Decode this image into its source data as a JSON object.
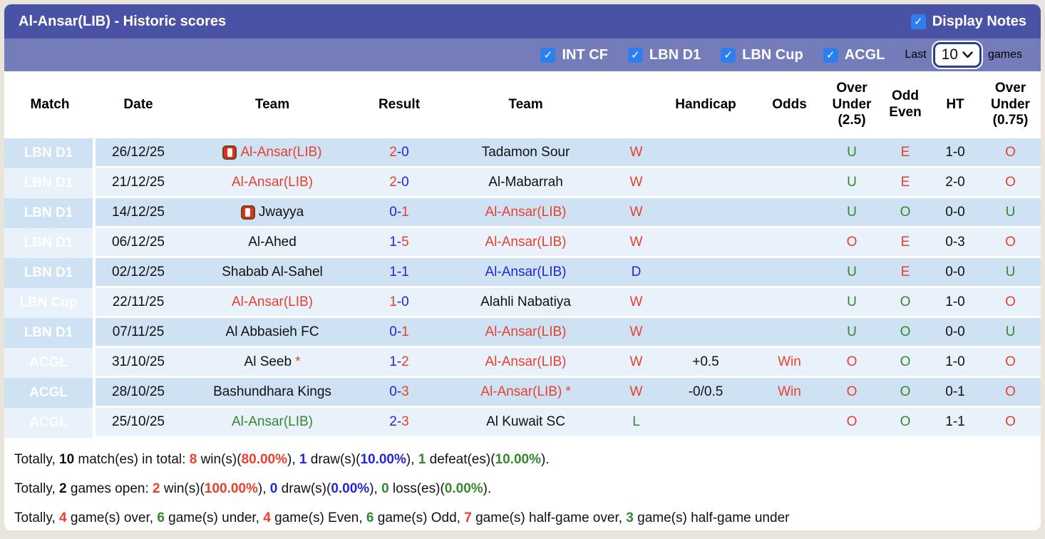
{
  "header": {
    "title": "Al-Ansar(LIB) - Historic scores",
    "display_notes_label": "Display Notes",
    "display_notes_checked": true
  },
  "filters": {
    "leagues": [
      {
        "label": "INT CF",
        "checked": true
      },
      {
        "label": "LBN D1",
        "checked": true
      },
      {
        "label": "LBN Cup",
        "checked": true
      },
      {
        "label": "ACGL",
        "checked": true
      }
    ],
    "last_label": "Last",
    "last_value": "10",
    "games_label": "games"
  },
  "table": {
    "columns": [
      {
        "key": "match",
        "label": "Match"
      },
      {
        "key": "date",
        "label": "Date"
      },
      {
        "key": "team1",
        "label": "Team"
      },
      {
        "key": "result",
        "label": "Result"
      },
      {
        "key": "team2",
        "label": "Team"
      },
      {
        "key": "wdl",
        "label": ""
      },
      {
        "key": "handicap",
        "label": "Handicap"
      },
      {
        "key": "odds",
        "label": "Odds"
      },
      {
        "key": "ou25",
        "label": "Over Under (2.5)"
      },
      {
        "key": "oddeven",
        "label": "Odd Even"
      },
      {
        "key": "ht",
        "label": "HT"
      },
      {
        "key": "ou075",
        "label": "Over Under (0.75)"
      }
    ],
    "rows": [
      {
        "league": "LBN D1",
        "league_color": "green",
        "date": "26/12/25",
        "team1": {
          "name": "Al-Ansar(LIB)",
          "color": "red",
          "logo": true,
          "suffix": ""
        },
        "result": {
          "left": "2",
          "right": "0",
          "left_color": "red",
          "right_color": "blue"
        },
        "team2": {
          "name": "Tadamon Sour",
          "color": "black",
          "suffix": ""
        },
        "wdl": {
          "text": "W",
          "color": "red"
        },
        "handicap": "",
        "odds": "",
        "ou25": {
          "text": "U",
          "color": "green"
        },
        "oddeven": {
          "text": "E",
          "color": "red"
        },
        "ht": "1-0",
        "ou075": {
          "text": "O",
          "color": "red"
        }
      },
      {
        "league": "LBN D1",
        "league_color": "green",
        "date": "21/12/25",
        "team1": {
          "name": "Al-Ansar(LIB)",
          "color": "red",
          "logo": false,
          "suffix": ""
        },
        "result": {
          "left": "2",
          "right": "0",
          "left_color": "red",
          "right_color": "blue"
        },
        "team2": {
          "name": "Al-Mabarrah",
          "color": "black",
          "suffix": ""
        },
        "wdl": {
          "text": "W",
          "color": "red"
        },
        "handicap": "",
        "odds": "",
        "ou25": {
          "text": "U",
          "color": "green"
        },
        "oddeven": {
          "text": "E",
          "color": "red"
        },
        "ht": "2-0",
        "ou075": {
          "text": "O",
          "color": "red"
        }
      },
      {
        "league": "LBN D1",
        "league_color": "green",
        "date": "14/12/25",
        "team1": {
          "name": "Jwayya",
          "color": "black",
          "logo": true,
          "suffix": ""
        },
        "result": {
          "left": "0",
          "right": "1",
          "left_color": "blue",
          "right_color": "red"
        },
        "team2": {
          "name": "Al-Ansar(LIB)",
          "color": "red",
          "suffix": ""
        },
        "wdl": {
          "text": "W",
          "color": "red"
        },
        "handicap": "",
        "odds": "",
        "ou25": {
          "text": "U",
          "color": "green"
        },
        "oddeven": {
          "text": "O",
          "color": "green"
        },
        "ht": "0-0",
        "ou075": {
          "text": "U",
          "color": "green"
        }
      },
      {
        "league": "LBN D1",
        "league_color": "green",
        "date": "06/12/25",
        "team1": {
          "name": "Al-Ahed",
          "color": "black",
          "logo": false,
          "suffix": ""
        },
        "result": {
          "left": "1",
          "right": "5",
          "left_color": "blue",
          "right_color": "red"
        },
        "team2": {
          "name": "Al-Ansar(LIB)",
          "color": "red",
          "suffix": ""
        },
        "wdl": {
          "text": "W",
          "color": "red"
        },
        "handicap": "",
        "odds": "",
        "ou25": {
          "text": "O",
          "color": "red"
        },
        "oddeven": {
          "text": "E",
          "color": "red"
        },
        "ht": "0-3",
        "ou075": {
          "text": "O",
          "color": "red"
        }
      },
      {
        "league": "LBN D1",
        "league_color": "green",
        "date": "02/12/25",
        "team1": {
          "name": "Shabab Al-Sahel",
          "color": "black",
          "logo": false,
          "suffix": ""
        },
        "result": {
          "left": "1",
          "right": "1",
          "left_color": "blue",
          "right_color": "blue"
        },
        "team2": {
          "name": "Al-Ansar(LIB)",
          "color": "blue",
          "suffix": ""
        },
        "wdl": {
          "text": "D",
          "color": "blue"
        },
        "handicap": "",
        "odds": "",
        "ou25": {
          "text": "U",
          "color": "green"
        },
        "oddeven": {
          "text": "E",
          "color": "red"
        },
        "ht": "0-0",
        "ou075": {
          "text": "U",
          "color": "green"
        }
      },
      {
        "league": "LBN Cup",
        "league_color": "cup",
        "date": "22/11/25",
        "team1": {
          "name": "Al-Ansar(LIB)",
          "color": "red",
          "logo": false,
          "suffix": ""
        },
        "result": {
          "left": "1",
          "right": "0",
          "left_color": "red",
          "right_color": "blue"
        },
        "team2": {
          "name": "Alahli Nabatiya",
          "color": "black",
          "suffix": ""
        },
        "wdl": {
          "text": "W",
          "color": "red"
        },
        "handicap": "",
        "odds": "",
        "ou25": {
          "text": "U",
          "color": "green"
        },
        "oddeven": {
          "text": "O",
          "color": "green"
        },
        "ht": "1-0",
        "ou075": {
          "text": "O",
          "color": "red"
        }
      },
      {
        "league": "LBN D1",
        "league_color": "green",
        "date": "07/11/25",
        "team1": {
          "name": "Al Abbasieh FC",
          "color": "black",
          "logo": false,
          "suffix": ""
        },
        "result": {
          "left": "0",
          "right": "1",
          "left_color": "blue",
          "right_color": "red"
        },
        "team2": {
          "name": "Al-Ansar(LIB)",
          "color": "red",
          "suffix": ""
        },
        "wdl": {
          "text": "W",
          "color": "red"
        },
        "handicap": "",
        "odds": "",
        "ou25": {
          "text": "U",
          "color": "green"
        },
        "oddeven": {
          "text": "O",
          "color": "green"
        },
        "ht": "0-0",
        "ou075": {
          "text": "U",
          "color": "green"
        }
      },
      {
        "league": "ACGL",
        "league_color": "orange",
        "date": "31/10/25",
        "team1": {
          "name": "Al Seeb",
          "color": "black",
          "logo": false,
          "suffix": "*"
        },
        "result": {
          "left": "1",
          "right": "2",
          "left_color": "blue",
          "right_color": "red"
        },
        "team2": {
          "name": "Al-Ansar(LIB)",
          "color": "red",
          "suffix": ""
        },
        "wdl": {
          "text": "W",
          "color": "red"
        },
        "handicap": "+0.5",
        "odds": "Win",
        "ou25": {
          "text": "O",
          "color": "red"
        },
        "oddeven": {
          "text": "O",
          "color": "green"
        },
        "ht": "1-0",
        "ou075": {
          "text": "O",
          "color": "red"
        }
      },
      {
        "league": "ACGL",
        "league_color": "orange",
        "date": "28/10/25",
        "team1": {
          "name": "Bashundhara Kings",
          "color": "black",
          "logo": false,
          "suffix": ""
        },
        "result": {
          "left": "0",
          "right": "3",
          "left_color": "blue",
          "right_color": "red"
        },
        "team2": {
          "name": "Al-Ansar(LIB)",
          "color": "red",
          "suffix": "*"
        },
        "wdl": {
          "text": "W",
          "color": "red"
        },
        "handicap": "-0/0.5",
        "odds": "Win",
        "ou25": {
          "text": "O",
          "color": "red"
        },
        "oddeven": {
          "text": "O",
          "color": "green"
        },
        "ht": "0-1",
        "ou075": {
          "text": "O",
          "color": "red"
        }
      },
      {
        "league": "ACGL",
        "league_color": "orange",
        "date": "25/10/25",
        "team1": {
          "name": "Al-Ansar(LIB)",
          "color": "green",
          "logo": false,
          "suffix": ""
        },
        "result": {
          "left": "2",
          "right": "3",
          "left_color": "blue",
          "right_color": "red"
        },
        "team2": {
          "name": "Al Kuwait SC",
          "color": "black",
          "suffix": ""
        },
        "wdl": {
          "text": "L",
          "color": "green"
        },
        "handicap": "",
        "odds": "",
        "ou25": {
          "text": "O",
          "color": "red"
        },
        "oddeven": {
          "text": "O",
          "color": "green"
        },
        "ht": "1-1",
        "ou075": {
          "text": "O",
          "color": "red"
        }
      }
    ]
  },
  "summary": {
    "lines": [
      [
        {
          "t": "Totally, "
        },
        {
          "t": "10",
          "b": true
        },
        {
          "t": " match(es) in total: "
        },
        {
          "t": "8",
          "c": "red",
          "b": true
        },
        {
          "t": " win(s)("
        },
        {
          "t": "80.00%",
          "c": "red",
          "b": true
        },
        {
          "t": "), "
        },
        {
          "t": "1",
          "c": "blue",
          "b": true
        },
        {
          "t": " draw(s)("
        },
        {
          "t": "10.00%",
          "c": "blue",
          "b": true
        },
        {
          "t": "), "
        },
        {
          "t": "1",
          "c": "green",
          "b": true
        },
        {
          "t": " defeat(es)("
        },
        {
          "t": "10.00%",
          "c": "green",
          "b": true
        },
        {
          "t": ")."
        }
      ],
      [
        {
          "t": "Totally, "
        },
        {
          "t": "2",
          "b": true
        },
        {
          "t": " games open: "
        },
        {
          "t": "2",
          "c": "red",
          "b": true
        },
        {
          "t": " win(s)("
        },
        {
          "t": "100.00%",
          "c": "red",
          "b": true
        },
        {
          "t": "), "
        },
        {
          "t": "0",
          "c": "blue",
          "b": true
        },
        {
          "t": " draw(s)("
        },
        {
          "t": "0.00%",
          "c": "blue",
          "b": true
        },
        {
          "t": "), "
        },
        {
          "t": "0",
          "c": "green",
          "b": true
        },
        {
          "t": " loss(es)("
        },
        {
          "t": "0.00%",
          "c": "green",
          "b": true
        },
        {
          "t": ")."
        }
      ],
      [
        {
          "t": "Totally, "
        },
        {
          "t": "4",
          "c": "red",
          "b": true
        },
        {
          "t": " game(s) over, "
        },
        {
          "t": "6",
          "c": "green",
          "b": true
        },
        {
          "t": " game(s) under, "
        },
        {
          "t": "4",
          "c": "red",
          "b": true
        },
        {
          "t": " game(s) Even, "
        },
        {
          "t": "6",
          "c": "green",
          "b": true
        },
        {
          "t": " game(s) Odd, "
        },
        {
          "t": "7",
          "c": "red",
          "b": true
        },
        {
          "t": " game(s) half-game over, "
        },
        {
          "t": "3",
          "c": "green",
          "b": true
        },
        {
          "t": " game(s) half-game under"
        }
      ]
    ]
  },
  "colors": {
    "bar-dark": "#4a52a5",
    "bar-light": "#757cba",
    "badge-green": "#569431",
    "badge-cup": "#81ae60",
    "badge-orange": "#e7a463",
    "row-dark": "#cee2f4",
    "row-light": "#e9f1fa",
    "accent-red": "#e8402e",
    "accent-blue": "#2326d8",
    "accent-green": "#35882e",
    "checkbox-blue": "#2d7ff0",
    "select-border": "#26418f",
    "frame-bg": "#e9e5dc",
    "text-black": "#111111"
  }
}
